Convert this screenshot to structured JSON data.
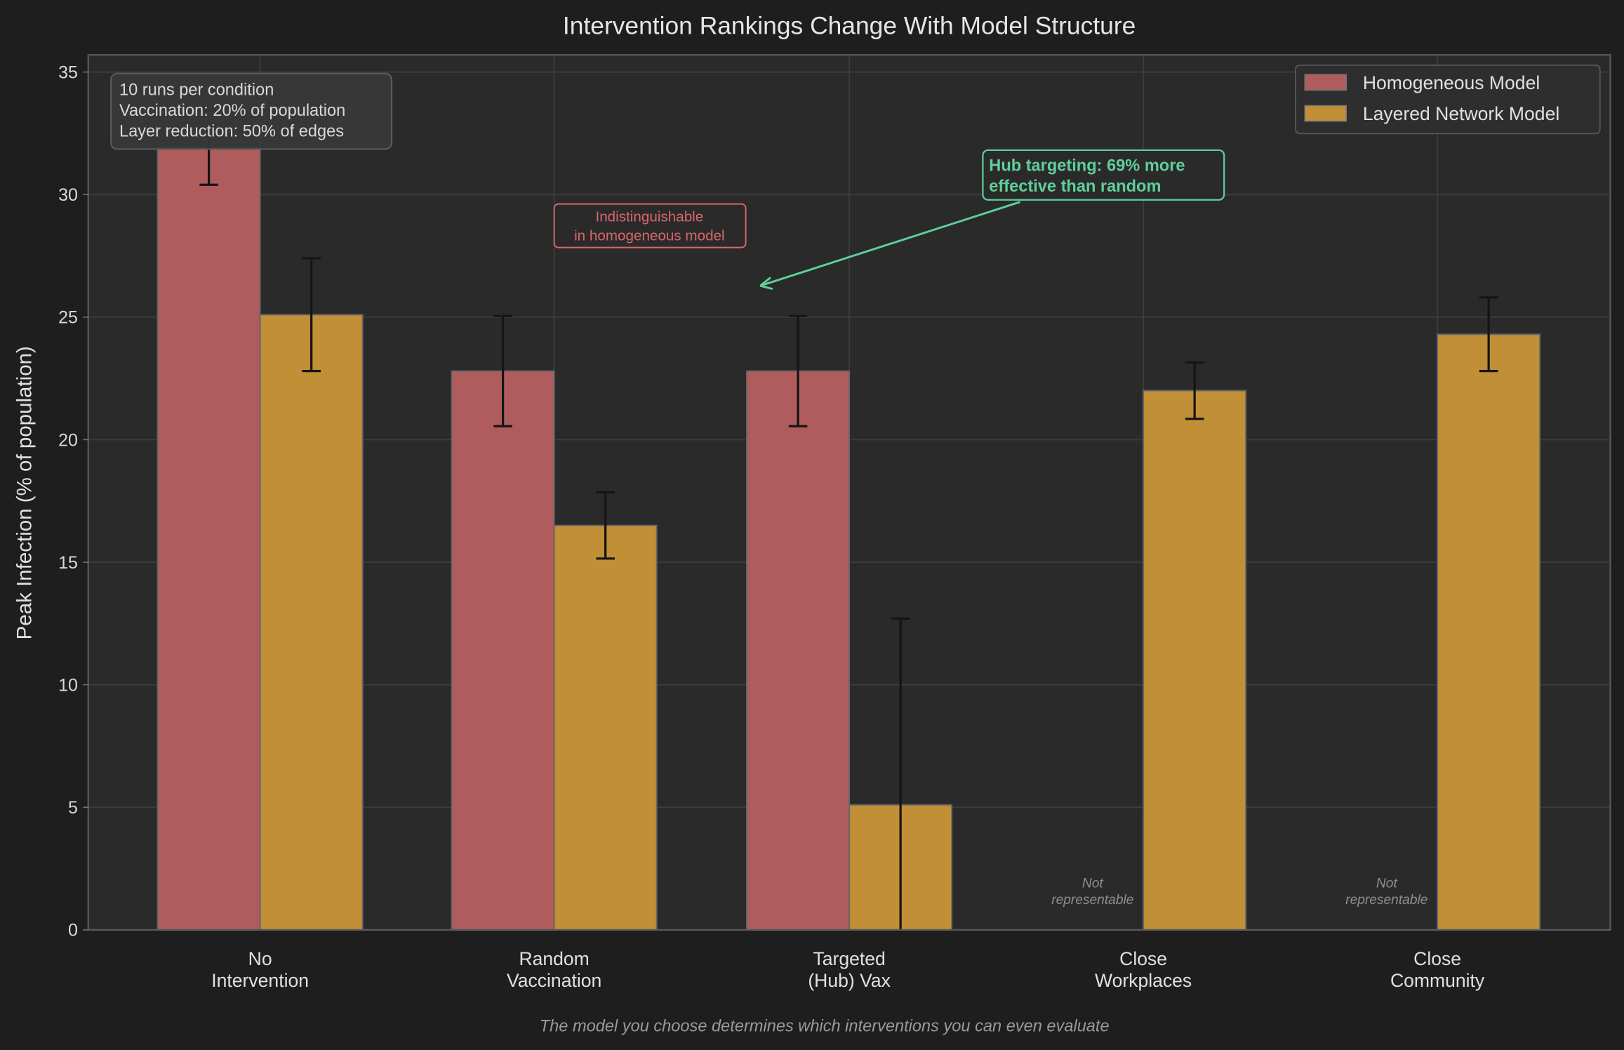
{
  "chart_data": {
    "type": "bar",
    "title": "Intervention Rankings Change With Model Structure",
    "ylabel": "Peak Infection (% of population)",
    "xlabel": "",
    "ylim": [
      0,
      35.7
    ],
    "yticks": [
      0,
      5,
      10,
      15,
      20,
      25,
      30,
      35
    ],
    "grid": true,
    "legend_position": "top-right",
    "categories": [
      "No\nIntervention",
      "Random\nVaccination",
      "Targeted\n(Hub) Vax",
      "Close\nWorkplaces",
      "Close\nCommunity"
    ],
    "series": [
      {
        "name": "Homogeneous Model",
        "color": "#d9666a",
        "values": [
          31.9,
          22.8,
          22.8,
          null,
          null
        ],
        "errors": [
          1.5,
          2.25,
          2.25,
          null,
          null
        ]
      },
      {
        "name": "Layered Network Model",
        "color": "#f0aa33",
        "values": [
          25.1,
          16.5,
          5.1,
          22.0,
          24.3
        ],
        "errors": [
          2.3,
          1.35,
          7.6,
          1.15,
          1.5
        ]
      }
    ],
    "not_representable_label": "Not\nrepresentable",
    "info_box": [
      "10 runs per condition",
      "Vaccination: 20% of population",
      "Layer reduction: 50% of edges"
    ],
    "annotations": {
      "indistinguishable": [
        "Indistinguishable",
        "in homogeneous model"
      ],
      "hub": [
        "Hub targeting: 69% more",
        "effective than random"
      ]
    },
    "caption": "The model you choose determines which interventions you can even evaluate"
  }
}
